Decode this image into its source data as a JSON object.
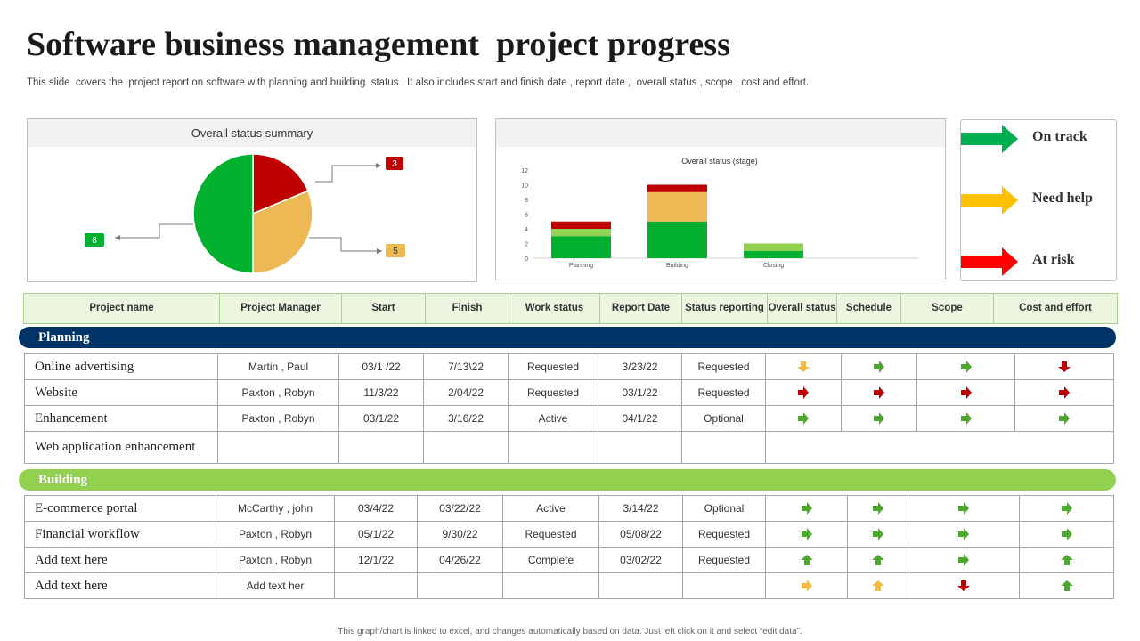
{
  "title": "Software business management  project progress",
  "subtitle": "This slide  covers the  project report on software with planning and building  status . It also includes start and finish date , report date ,  overall status , scope , cost and effort.",
  "pie_panel": {
    "header": "Overall  status summary"
  },
  "bar_panel": {
    "header": ""
  },
  "legend": [
    {
      "label": "On track",
      "color": "#00b050"
    },
    {
      "label": "Need help",
      "color": "#ffc000"
    },
    {
      "label": "At risk",
      "color": "#ff0000"
    }
  ],
  "chart_data": [
    {
      "type": "pie",
      "title": "",
      "slices": [
        {
          "name": "",
          "value": 3,
          "color": "#c00000",
          "label": "3"
        },
        {
          "name": "",
          "value": 5,
          "color": "#ecb954",
          "label": "5"
        },
        {
          "name": "",
          "value": 8,
          "color": "#00b02e",
          "label": "8"
        }
      ]
    },
    {
      "type": "bar",
      "stacked": true,
      "title": "Overall status (stage)",
      "categories": [
        "Planning",
        "Building",
        "Closing"
      ],
      "series": [
        {
          "name": "",
          "color": "#00b02e",
          "values": [
            3,
            5,
            1
          ]
        },
        {
          "name": "",
          "color": "#ecb954",
          "values": [
            0,
            4,
            0
          ]
        },
        {
          "name": "",
          "color": "#92d050",
          "values": [
            1,
            0,
            1
          ]
        },
        {
          "name": "",
          "color": "#c00000",
          "values": [
            1,
            1,
            0
          ]
        }
      ],
      "ylim": [
        0,
        12
      ],
      "yticks": [
        0,
        2,
        4,
        6,
        8,
        10,
        12
      ],
      "grid": false
    }
  ],
  "table_headers": [
    "Project name",
    "Project Manager",
    "Start",
    "Finish",
    "Work status",
    "Report Date",
    "Status reporting",
    "Overall status",
    "Schedule",
    "Scope",
    "Cost and effort"
  ],
  "sections": {
    "planning": {
      "label": "Planning",
      "rows": [
        {
          "name": "Online advertising",
          "manager": "Martin , Paul",
          "start": "03/1 /22",
          "finish": "7/13\\22",
          "work_status": "Requested",
          "report_date": "3/23/22",
          "status_reporting": "Requested",
          "arrows": [
            "yellow-down",
            "green-right",
            "green-right",
            "red-down"
          ]
        },
        {
          "name": "Website",
          "manager": "Paxton , Robyn",
          "start": "11/3/22",
          "finish": "2/04/22",
          "work_status": "Requested",
          "report_date": "03/1/22",
          "status_reporting": "Requested",
          "arrows": [
            "red-right",
            "red-right",
            "red-right",
            "red-right"
          ]
        },
        {
          "name": "Enhancement",
          "manager": "Paxton , Robyn",
          "start": "03/1/22",
          "finish": "3/16/22",
          "work_status": "Active",
          "report_date": "04/1/22",
          "status_reporting": "Optional",
          "arrows": [
            "green-right",
            "green-right",
            "green-right",
            "green-right"
          ]
        },
        {
          "name": "Web application enhancement",
          "manager": "",
          "start": "",
          "finish": "",
          "work_status": "",
          "report_date": "",
          "status_reporting": "",
          "arrows": []
        }
      ]
    },
    "building": {
      "label": "Building",
      "rows": [
        {
          "name": "E-commerce portal",
          "manager": "McCarthy , john",
          "start": "03/4/22",
          "finish": "03/22/22",
          "work_status": "Active",
          "report_date": "3/14/22",
          "status_reporting": "Optional",
          "arrows": [
            "green-right",
            "green-right",
            "green-right",
            "green-right"
          ]
        },
        {
          "name": "Financial workflow",
          "manager": "Paxton , Robyn",
          "start": "05/1/22",
          "finish": "9/30/22",
          "work_status": "Requested",
          "report_date": "05/08/22",
          "status_reporting": "Requested",
          "arrows": [
            "green-right",
            "green-right",
            "green-right",
            "green-right"
          ]
        },
        {
          "name": "Add text here",
          "manager": "Paxton , Robyn",
          "start": "12/1/22",
          "finish": "04/26/22",
          "work_status": "Complete",
          "report_date": "03/02/22",
          "status_reporting": "Requested",
          "arrows": [
            "green-up",
            "green-up",
            "green-right",
            "green-up"
          ]
        },
        {
          "name": "Add text here",
          "manager": "Add text her",
          "start": "",
          "finish": "",
          "work_status": "",
          "report_date": "",
          "status_reporting": "",
          "arrows": [
            "yellow-right",
            "yellow-up",
            "red-down",
            "green-up"
          ]
        }
      ]
    }
  },
  "arrow_colors": {
    "green": "#4ea72e",
    "yellow": "#f4b942",
    "red": "#c00000"
  },
  "footer": "This graph/chart is linked to excel, and changes automatically based on data. Just left click on it and select “edit data”."
}
